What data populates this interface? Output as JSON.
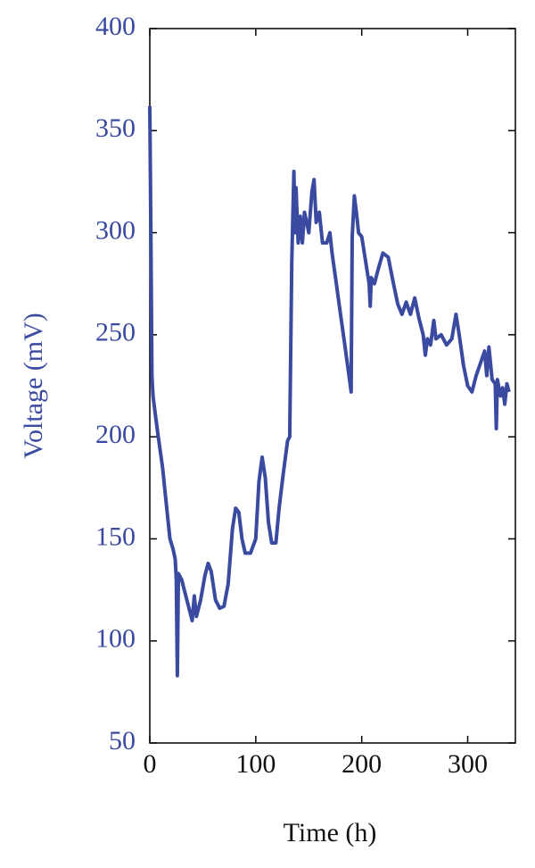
{
  "chart_data": {
    "type": "line",
    "xlabel": "Time (h)",
    "ylabel": "Voltage (mV)",
    "xlim": [
      0,
      345
    ],
    "xticks": [
      0,
      100,
      200,
      300
    ],
    "ylim": [
      50,
      400
    ],
    "yticks": [
      50,
      100,
      150,
      200,
      250,
      300,
      350,
      400
    ],
    "series": [
      {
        "color": "#3a4aa0",
        "x": [
          0,
          1,
          2,
          3,
          5,
          8,
          12,
          16,
          19,
          22,
          24,
          25,
          26,
          27,
          30,
          35,
          40,
          42,
          44,
          48,
          52,
          55,
          58,
          62,
          66,
          70,
          74,
          78,
          81,
          84,
          87,
          90,
          95,
          100,
          103,
          106,
          109,
          112,
          115,
          119,
          122,
          126,
          130,
          132,
          134,
          136,
          137,
          138,
          140,
          142,
          144,
          146,
          150,
          153,
          155,
          157,
          160,
          163,
          167,
          170,
          172,
          176,
          180,
          184,
          188,
          190,
          191,
          193,
          195,
          197,
          200,
          204,
          207,
          208,
          209,
          212,
          216,
          220,
          225,
          230,
          234,
          238,
          242,
          246,
          250,
          254,
          258,
          260,
          262,
          265,
          268,
          270,
          275,
          280,
          285,
          289,
          292,
          296,
          300,
          304,
          308,
          312,
          316,
          318,
          320,
          323,
          326,
          327,
          328,
          331,
          333,
          335,
          337,
          339
        ],
        "values": [
          362,
          300,
          230,
          220,
          212,
          200,
          185,
          165,
          150,
          145,
          140,
          130,
          83,
          133,
          130,
          120,
          110,
          122,
          112,
          120,
          132,
          138,
          134,
          120,
          116,
          117,
          128,
          155,
          165,
          163,
          150,
          143,
          143,
          150,
          178,
          190,
          180,
          158,
          148,
          148,
          165,
          182,
          198,
          200,
          285,
          330,
          300,
          322,
          295,
          308,
          295,
          310,
          300,
          320,
          326,
          305,
          310,
          295,
          295,
          300,
          290,
          275,
          260,
          245,
          230,
          222,
          298,
          318,
          310,
          300,
          298,
          285,
          275,
          264,
          278,
          275,
          283,
          290,
          288,
          275,
          265,
          260,
          266,
          260,
          268,
          258,
          250,
          240,
          248,
          245,
          257,
          248,
          250,
          245,
          248,
          260,
          250,
          235,
          225,
          222,
          230,
          236,
          242,
          230,
          244,
          228,
          226,
          204,
          228,
          220,
          224,
          216,
          226,
          222
        ]
      }
    ]
  }
}
